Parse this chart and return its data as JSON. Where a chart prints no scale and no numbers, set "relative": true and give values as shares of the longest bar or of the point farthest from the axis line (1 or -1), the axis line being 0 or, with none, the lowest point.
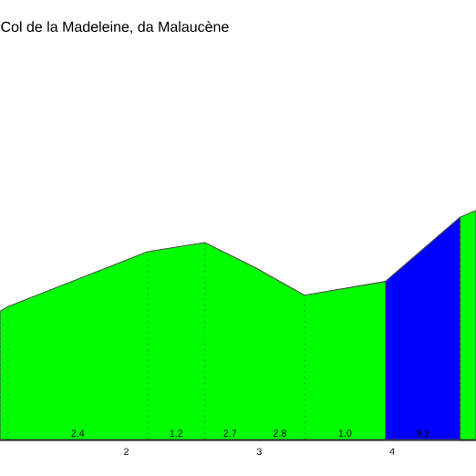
{
  "chart_data": {
    "type": "area",
    "title": "Col de la Madeleine, da Malaucène",
    "relative": true,
    "series": [
      {
        "color": "#00ff00",
        "x": [
          1.05,
          1.11,
          2.16,
          2.59,
          2.97,
          3.34,
          3.95,
          4.51,
          4.63
        ],
        "values": [
          0.56,
          0.58,
          0.82,
          0.86,
          0.75,
          0.63,
          0.69,
          0.97,
          1
        ]
      },
      {
        "color": "#0000ff",
        "x": [
          3.95,
          4.51
        ],
        "values": [
          0.69,
          0.97
        ]
      }
    ],
    "xlim": [
      1.05,
      4.63
    ],
    "xticks": [
      2,
      3,
      4
    ],
    "ref_lines": [
      {
        "axis": "x",
        "value": 1.11,
        "line_style": "dotted"
      },
      {
        "axis": "x",
        "value": 2.16,
        "line_style": "dotted"
      },
      {
        "axis": "x",
        "value": 2.59,
        "line_style": "dotted"
      },
      {
        "axis": "x",
        "value": 3.34,
        "line_style": "dotted"
      },
      {
        "axis": "x",
        "value": 4.51,
        "line_style": "dotted"
      }
    ],
    "annotations": [
      "2.4",
      "1.2",
      "2.7",
      "2.8",
      "1.0",
      "9.2"
    ]
  }
}
